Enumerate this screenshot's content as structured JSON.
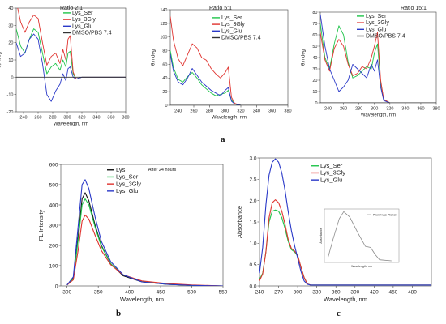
{
  "colors": {
    "Lys": "#111111",
    "Lys_Ser": "#1fc44a",
    "Lys_3Gly": "#e0332f",
    "Lys_Glu": "#2a39c8",
    "DMSO/PBS 7.4": "#333333",
    "inset": "#8a8a8a"
  },
  "panel_labels": {
    "a": "a",
    "b": "b",
    "c": "c"
  },
  "chart_data": [
    {
      "type": "line",
      "title": "Ratio 2:1",
      "xlabel": "Wavelength, nm",
      "ylabel": "θ,mdeg",
      "xlim": [
        230,
        380
      ],
      "ylim": [
        -20,
        40
      ],
      "xticks": [
        240,
        260,
        280,
        300,
        320,
        340,
        360,
        380
      ],
      "yticks": [
        -20,
        -10,
        0,
        10,
        20,
        30,
        40
      ],
      "legend_loc": "top-right",
      "series": [
        {
          "name": "Lys_Ser",
          "x": [
            230,
            236,
            242,
            248,
            254,
            260,
            266,
            272,
            278,
            284,
            290,
            294,
            298,
            301,
            304,
            308,
            312,
            320,
            340,
            380
          ],
          "y": [
            28,
            18,
            14,
            22,
            28,
            26,
            14,
            2,
            6,
            8,
            4,
            10,
            6,
            14,
            15,
            2,
            -1,
            0,
            0,
            0
          ]
        },
        {
          "name": "Lys_3Gly",
          "x": [
            230,
            236,
            242,
            248,
            254,
            260,
            266,
            272,
            278,
            284,
            290,
            294,
            298,
            301,
            304,
            308,
            312,
            320,
            340,
            380
          ],
          "y": [
            44,
            32,
            26,
            32,
            36,
            34,
            20,
            7,
            12,
            14,
            8,
            16,
            10,
            22,
            24,
            3,
            -1,
            0,
            0,
            0
          ]
        },
        {
          "name": "Lys_Glu",
          "x": [
            230,
            236,
            242,
            248,
            254,
            260,
            266,
            272,
            278,
            284,
            290,
            294,
            298,
            301,
            304,
            308,
            312,
            320,
            340,
            380
          ],
          "y": [
            20,
            12,
            14,
            22,
            25,
            22,
            8,
            -10,
            -14,
            -8,
            -4,
            2,
            -2,
            5,
            6,
            0,
            -1,
            0,
            0,
            0
          ]
        },
        {
          "name": "DMSO/PBS 7.4",
          "x": [
            230,
            300,
            340,
            380
          ],
          "y": [
            0,
            0,
            0,
            0
          ]
        }
      ]
    },
    {
      "type": "line",
      "title": "Ratio 5:1",
      "xlabel": "Wavelength, nm",
      "ylabel": "θ,mdeg",
      "xlim": [
        230,
        380
      ],
      "ylim": [
        0,
        140
      ],
      "xticks": [
        240,
        260,
        280,
        300,
        320,
        340,
        360,
        380
      ],
      "yticks": [
        0,
        20,
        40,
        60,
        80,
        100,
        120,
        140
      ],
      "legend_loc": "top-right",
      "series": [
        {
          "name": "Lys_Ser",
          "x": [
            230,
            234,
            240,
            246,
            252,
            258,
            264,
            270,
            276,
            282,
            288,
            294,
            300,
            304,
            308,
            312,
            320,
            340,
            380
          ],
          "y": [
            80,
            55,
            38,
            34,
            42,
            48,
            40,
            30,
            24,
            18,
            14,
            16,
            18,
            22,
            8,
            2,
            0,
            0,
            0
          ]
        },
        {
          "name": "Lys_3Gly",
          "x": [
            230,
            234,
            240,
            246,
            252,
            258,
            264,
            270,
            276,
            282,
            288,
            294,
            300,
            304,
            308,
            312,
            320,
            340,
            380
          ],
          "y": [
            130,
            95,
            68,
            58,
            74,
            90,
            84,
            70,
            66,
            54,
            46,
            40,
            48,
            56,
            12,
            3,
            0,
            0,
            0
          ]
        },
        {
          "name": "Lys_Glu",
          "x": [
            230,
            234,
            240,
            246,
            252,
            258,
            264,
            270,
            276,
            282,
            288,
            294,
            300,
            304,
            308,
            312,
            320,
            340,
            380
          ],
          "y": [
            75,
            50,
            34,
            30,
            40,
            54,
            44,
            34,
            28,
            22,
            18,
            14,
            22,
            26,
            6,
            2,
            0,
            0,
            0
          ]
        },
        {
          "name": "DMSO/PBS 7.4",
          "x": [
            230,
            300,
            340,
            380
          ],
          "y": [
            0,
            0,
            0,
            0
          ]
        }
      ]
    },
    {
      "type": "line",
      "title": "Ratio 15:1",
      "xlabel": "Wavelength, nm",
      "ylabel": "θ,mdeg",
      "xlim": [
        230,
        380
      ],
      "ylim": [
        0,
        80
      ],
      "xticks": [
        240,
        260,
        280,
        300,
        320,
        340,
        360,
        380
      ],
      "yticks": [
        0,
        10,
        20,
        30,
        40,
        50,
        60,
        70,
        80
      ],
      "legend_loc": "top-right",
      "series": [
        {
          "name": "Lys_Ser",
          "x": [
            230,
            236,
            242,
            248,
            254,
            260,
            266,
            272,
            278,
            284,
            290,
            296,
            300,
            304,
            308,
            312,
            320,
            340,
            380
          ],
          "y": [
            70,
            40,
            30,
            52,
            68,
            60,
            36,
            22,
            24,
            28,
            32,
            30,
            44,
            52,
            18,
            3,
            0,
            0,
            0
          ]
        },
        {
          "name": "Lys_3Gly",
          "x": [
            230,
            236,
            242,
            248,
            254,
            260,
            266,
            272,
            278,
            284,
            290,
            296,
            300,
            304,
            308,
            312,
            320,
            340,
            380
          ],
          "y": [
            62,
            38,
            28,
            48,
            56,
            50,
            34,
            24,
            26,
            32,
            30,
            40,
            50,
            62,
            20,
            3,
            0,
            0,
            0
          ]
        },
        {
          "name": "Lys_Glu",
          "x": [
            230,
            236,
            242,
            248,
            254,
            260,
            266,
            272,
            278,
            284,
            290,
            296,
            300,
            304,
            308,
            312,
            320,
            340,
            380
          ],
          "y": [
            78,
            50,
            30,
            20,
            10,
            14,
            20,
            34,
            30,
            26,
            22,
            34,
            28,
            38,
            14,
            2,
            0,
            0,
            0
          ]
        },
        {
          "name": "DMSO/PBS 7.4",
          "x": [
            230,
            300,
            340,
            380
          ],
          "y": [
            0,
            0,
            0,
            0
          ]
        }
      ]
    },
    {
      "type": "line",
      "title": "After 24 hours",
      "xlabel": "Wavelength, nm",
      "ylabel": "FL Intensity",
      "xlim": [
        290,
        550
      ],
      "ylim": [
        0,
        600
      ],
      "xticks": [
        300,
        350,
        400,
        450,
        500,
        550
      ],
      "yticks": [
        0,
        100,
        200,
        300,
        400,
        500,
        600
      ],
      "legend_loc": "top-left",
      "series": [
        {
          "name": "Lys",
          "x": [
            300,
            310,
            318,
            324,
            329,
            335,
            345,
            355,
            370,
            390,
            420,
            460,
            500,
            550
          ],
          "y": [
            5,
            40,
            250,
            430,
            460,
            420,
            300,
            200,
            110,
            50,
            20,
            8,
            3,
            0
          ]
        },
        {
          "name": "Lys_Ser",
          "x": [
            300,
            310,
            318,
            324,
            329,
            335,
            345,
            355,
            370,
            390,
            420,
            460,
            500,
            550
          ],
          "y": [
            5,
            35,
            230,
            400,
            430,
            400,
            290,
            195,
            110,
            55,
            22,
            9,
            3,
            0
          ]
        },
        {
          "name": "Lys_3Gly",
          "x": [
            300,
            310,
            318,
            324,
            329,
            335,
            345,
            355,
            370,
            390,
            420,
            460,
            500,
            550
          ],
          "y": [
            5,
            30,
            180,
            320,
            350,
            330,
            250,
            175,
            105,
            55,
            25,
            12,
            5,
            0
          ]
        },
        {
          "name": "Lys_Glu",
          "x": [
            300,
            310,
            318,
            324,
            329,
            335,
            345,
            355,
            370,
            390,
            420,
            460,
            500,
            550
          ],
          "y": [
            5,
            45,
            300,
            500,
            525,
            480,
            340,
            220,
            120,
            55,
            20,
            8,
            3,
            0
          ]
        }
      ]
    },
    {
      "type": "line",
      "title": "",
      "xlabel": "Wavelength, nm",
      "ylabel": "Absorbance",
      "xlim": [
        240,
        510
      ],
      "ylim": [
        0,
        3.0
      ],
      "xticks": [
        240,
        270,
        300,
        330,
        360,
        390,
        420,
        450,
        480
      ],
      "yticks": [
        0.0,
        0.5,
        1.0,
        1.5,
        2.0,
        2.5,
        3.0
      ],
      "legend_loc": "top-left",
      "series": [
        {
          "name": "Lys_Ser",
          "x": [
            240,
            245,
            250,
            255,
            260,
            265,
            270,
            275,
            280,
            285,
            290,
            295,
            300,
            305,
            310,
            315,
            320,
            510
          ],
          "y": [
            0.15,
            0.3,
            0.8,
            1.5,
            1.75,
            1.78,
            1.75,
            1.6,
            1.35,
            1.05,
            0.85,
            0.8,
            0.7,
            0.45,
            0.2,
            0.05,
            0.02,
            0.02
          ]
        },
        {
          "name": "Lys_3Gly",
          "x": [
            240,
            245,
            250,
            255,
            260,
            265,
            270,
            275,
            280,
            285,
            290,
            295,
            300,
            305,
            310,
            315,
            320,
            510
          ],
          "y": [
            0.12,
            0.28,
            0.8,
            1.6,
            1.95,
            2.02,
            1.95,
            1.75,
            1.45,
            1.1,
            0.88,
            0.82,
            0.72,
            0.45,
            0.2,
            0.05,
            0.02,
            0.02
          ]
        },
        {
          "name": "Lys_Glu",
          "x": [
            240,
            245,
            250,
            255,
            260,
            265,
            270,
            275,
            280,
            285,
            290,
            295,
            300,
            305,
            310,
            315,
            320,
            510
          ],
          "y": [
            0.3,
            0.9,
            1.9,
            2.6,
            2.9,
            2.98,
            2.9,
            2.65,
            2.25,
            1.75,
            1.3,
            0.95,
            0.65,
            0.35,
            0.12,
            0.04,
            0.02,
            0.02
          ]
        }
      ]
    }
  ],
  "inset": {
    "legend": "Phenyl-Lys-Phenol",
    "xlabel": "Wavelength, nm",
    "ylabel": "Absorbance"
  }
}
